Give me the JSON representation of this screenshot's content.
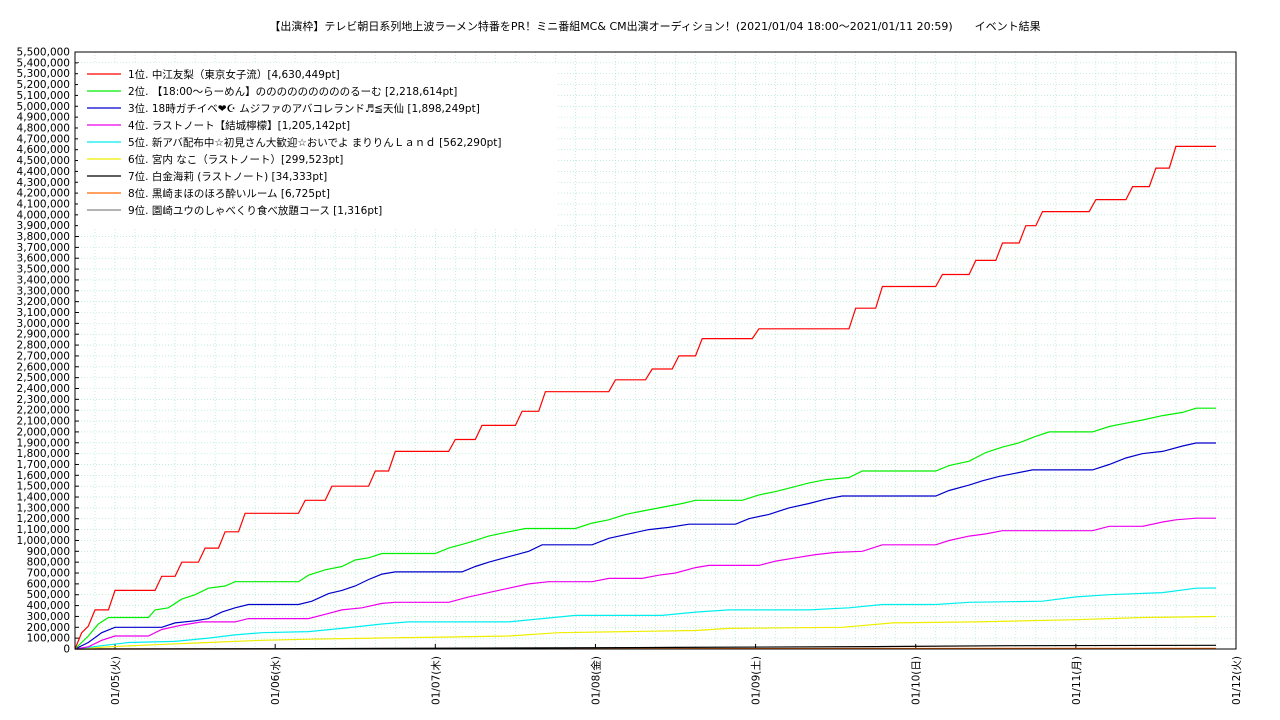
{
  "chart_data": {
    "type": "line",
    "title": "【出演枠】テレビ朝日系列地上波ラーメン特番をPR！ミニ番組MC& CM出演オーディション！(2021/01/04 18:00～2021/01/11 20:59)　　イベント結果",
    "xlabel": "",
    "ylabel": "",
    "x_ticks": [
      "01/05(火)",
      "01/06(水)",
      "01/07(木)",
      "01/08(金)",
      "01/09(土)",
      "01/10(日)",
      "01/11(月)",
      "01/12(火)"
    ],
    "x_range": [
      "2021/01/04 18:00",
      "2021/01/12 00:00"
    ],
    "ylim": [
      0,
      5500000
    ],
    "y_step": 100000,
    "grid": true,
    "legend_position": "top-left",
    "x_unit": "hours since 2021/01/04 18:00",
    "series": [
      {
        "name": "1位. 中江友梨（東京女子流）[4,630,449pt]",
        "color": "#ff0000",
        "points": [
          [
            0,
            0
          ],
          [
            2,
            150000
          ],
          [
            4,
            210000
          ],
          [
            6,
            360000
          ],
          [
            10,
            360000
          ],
          [
            12,
            540000
          ],
          [
            24,
            540000
          ],
          [
            26,
            670000
          ],
          [
            30,
            670000
          ],
          [
            32,
            800000
          ],
          [
            37,
            800000
          ],
          [
            39,
            930000
          ],
          [
            43,
            930000
          ],
          [
            45,
            1080000
          ],
          [
            49,
            1080000
          ],
          [
            51,
            1250000
          ],
          [
            67,
            1250000
          ],
          [
            69,
            1370000
          ],
          [
            75,
            1370000
          ],
          [
            77,
            1500000
          ],
          [
            88,
            1500000
          ],
          [
            90,
            1640000
          ],
          [
            94,
            1640000
          ],
          [
            96,
            1820000
          ],
          [
            112,
            1820000
          ],
          [
            114,
            1930000
          ],
          [
            120,
            1930000
          ],
          [
            122,
            2060000
          ],
          [
            132,
            2060000
          ],
          [
            134,
            2190000
          ],
          [
            139,
            2190000
          ],
          [
            141,
            2370000
          ],
          [
            160,
            2370000
          ],
          [
            162,
            2480000
          ],
          [
            171,
            2480000
          ],
          [
            173,
            2580000
          ],
          [
            179,
            2580000
          ],
          [
            181,
            2700000
          ],
          [
            186,
            2700000
          ],
          [
            188,
            2860000
          ],
          [
            203,
            2860000
          ],
          [
            205,
            2950000
          ],
          [
            232,
            2950000
          ],
          [
            234,
            3140000
          ],
          [
            240,
            3140000
          ],
          [
            242,
            3340000
          ],
          [
            258,
            3340000
          ],
          [
            260,
            3450000
          ],
          [
            268,
            3450000
          ],
          [
            270,
            3580000
          ],
          [
            276,
            3580000
          ],
          [
            278,
            3740000
          ],
          [
            283,
            3740000
          ],
          [
            285,
            3900000
          ],
          [
            288,
            3900000
          ],
          [
            290,
            4030000
          ],
          [
            304,
            4030000
          ],
          [
            306,
            4140000
          ],
          [
            315,
            4140000
          ],
          [
            317,
            4260000
          ],
          [
            322,
            4260000
          ],
          [
            324,
            4430000
          ],
          [
            328,
            4430000
          ],
          [
            330,
            4630449
          ],
          [
            342,
            4630449
          ]
        ]
      },
      {
        "name": "2位. 【18:00～らーめん】のののののののののるーむ [2,218,614pt]",
        "color": "#00ee00",
        "points": [
          [
            0,
            0
          ],
          [
            4,
            120000
          ],
          [
            7,
            230000
          ],
          [
            10,
            290000
          ],
          [
            22,
            290000
          ],
          [
            24,
            360000
          ],
          [
            28,
            380000
          ],
          [
            32,
            460000
          ],
          [
            36,
            500000
          ],
          [
            40,
            560000
          ],
          [
            45,
            580000
          ],
          [
            48,
            620000
          ],
          [
            67,
            620000
          ],
          [
            70,
            680000
          ],
          [
            75,
            730000
          ],
          [
            80,
            760000
          ],
          [
            84,
            820000
          ],
          [
            88,
            840000
          ],
          [
            92,
            880000
          ],
          [
            108,
            880000
          ],
          [
            112,
            930000
          ],
          [
            118,
            980000
          ],
          [
            124,
            1040000
          ],
          [
            130,
            1080000
          ],
          [
            135,
            1110000
          ],
          [
            150,
            1110000
          ],
          [
            155,
            1160000
          ],
          [
            160,
            1190000
          ],
          [
            165,
            1240000
          ],
          [
            170,
            1270000
          ],
          [
            175,
            1300000
          ],
          [
            182,
            1340000
          ],
          [
            186,
            1370000
          ],
          [
            200,
            1370000
          ],
          [
            205,
            1420000
          ],
          [
            210,
            1450000
          ],
          [
            215,
            1490000
          ],
          [
            220,
            1530000
          ],
          [
            225,
            1560000
          ],
          [
            232,
            1580000
          ],
          [
            236,
            1640000
          ],
          [
            258,
            1640000
          ],
          [
            262,
            1690000
          ],
          [
            268,
            1730000
          ],
          [
            273,
            1810000
          ],
          [
            278,
            1860000
          ],
          [
            283,
            1900000
          ],
          [
            288,
            1960000
          ],
          [
            292,
            2000000
          ],
          [
            305,
            2000000
          ],
          [
            310,
            2050000
          ],
          [
            315,
            2080000
          ],
          [
            320,
            2110000
          ],
          [
            326,
            2150000
          ],
          [
            332,
            2180000
          ],
          [
            336,
            2218614
          ],
          [
            342,
            2218614
          ]
        ]
      },
      {
        "name": "3位. 18時ガチイベ❤︎☪︎ ムジファのアバコレランド♬≦天仙 [1,898,249pt]",
        "color": "#0000cc",
        "points": [
          [
            0,
            0
          ],
          [
            4,
            60000
          ],
          [
            8,
            150000
          ],
          [
            12,
            200000
          ],
          [
            26,
            200000
          ],
          [
            30,
            240000
          ],
          [
            36,
            260000
          ],
          [
            40,
            280000
          ],
          [
            44,
            340000
          ],
          [
            48,
            380000
          ],
          [
            52,
            410000
          ],
          [
            67,
            410000
          ],
          [
            71,
            440000
          ],
          [
            76,
            510000
          ],
          [
            80,
            540000
          ],
          [
            84,
            580000
          ],
          [
            88,
            640000
          ],
          [
            92,
            690000
          ],
          [
            96,
            710000
          ],
          [
            116,
            710000
          ],
          [
            120,
            760000
          ],
          [
            124,
            800000
          ],
          [
            130,
            850000
          ],
          [
            136,
            900000
          ],
          [
            140,
            960000
          ],
          [
            155,
            960000
          ],
          [
            160,
            1020000
          ],
          [
            166,
            1060000
          ],
          [
            172,
            1100000
          ],
          [
            178,
            1120000
          ],
          [
            184,
            1150000
          ],
          [
            198,
            1150000
          ],
          [
            202,
            1200000
          ],
          [
            208,
            1240000
          ],
          [
            214,
            1300000
          ],
          [
            220,
            1340000
          ],
          [
            225,
            1380000
          ],
          [
            230,
            1410000
          ],
          [
            258,
            1410000
          ],
          [
            262,
            1460000
          ],
          [
            268,
            1510000
          ],
          [
            272,
            1550000
          ],
          [
            277,
            1590000
          ],
          [
            282,
            1620000
          ],
          [
            287,
            1650000
          ],
          [
            305,
            1650000
          ],
          [
            310,
            1700000
          ],
          [
            315,
            1760000
          ],
          [
            320,
            1800000
          ],
          [
            326,
            1820000
          ],
          [
            332,
            1870000
          ],
          [
            336,
            1898249
          ],
          [
            342,
            1898249
          ]
        ]
      },
      {
        "name": "4位. ラストノート【結城檸檬】[1,205,142pt]",
        "color": "#ee00ee",
        "points": [
          [
            0,
            0
          ],
          [
            4,
            20000
          ],
          [
            8,
            80000
          ],
          [
            12,
            120000
          ],
          [
            22,
            120000
          ],
          [
            26,
            180000
          ],
          [
            32,
            220000
          ],
          [
            38,
            250000
          ],
          [
            48,
            250000
          ],
          [
            52,
            280000
          ],
          [
            70,
            280000
          ],
          [
            75,
            320000
          ],
          [
            80,
            360000
          ],
          [
            86,
            380000
          ],
          [
            92,
            420000
          ],
          [
            96,
            430000
          ],
          [
            112,
            430000
          ],
          [
            118,
            480000
          ],
          [
            124,
            520000
          ],
          [
            130,
            560000
          ],
          [
            136,
            600000
          ],
          [
            142,
            620000
          ],
          [
            155,
            620000
          ],
          [
            160,
            650000
          ],
          [
            170,
            650000
          ],
          [
            175,
            680000
          ],
          [
            180,
            700000
          ],
          [
            186,
            750000
          ],
          [
            190,
            770000
          ],
          [
            205,
            770000
          ],
          [
            210,
            810000
          ],
          [
            216,
            840000
          ],
          [
            222,
            870000
          ],
          [
            228,
            890000
          ],
          [
            236,
            900000
          ],
          [
            242,
            960000
          ],
          [
            258,
            960000
          ],
          [
            262,
            1000000
          ],
          [
            268,
            1040000
          ],
          [
            273,
            1060000
          ],
          [
            278,
            1090000
          ],
          [
            290,
            1090000
          ],
          [
            305,
            1090000
          ],
          [
            310,
            1130000
          ],
          [
            320,
            1130000
          ],
          [
            326,
            1170000
          ],
          [
            330,
            1190000
          ],
          [
            336,
            1205142
          ],
          [
            342,
            1205142
          ]
        ]
      },
      {
        "name": "5位. 新アバ配布中☆初見さん大歓迎☆おいでよ まりりんＬａｎｄ [562,290pt]",
        "color": "#00eeee",
        "points": [
          [
            0,
            0
          ],
          [
            8,
            30000
          ],
          [
            16,
            60000
          ],
          [
            30,
            70000
          ],
          [
            40,
            100000
          ],
          [
            48,
            130000
          ],
          [
            56,
            150000
          ],
          [
            70,
            160000
          ],
          [
            80,
            190000
          ],
          [
            92,
            230000
          ],
          [
            100,
            250000
          ],
          [
            130,
            250000
          ],
          [
            140,
            280000
          ],
          [
            150,
            310000
          ],
          [
            176,
            310000
          ],
          [
            186,
            340000
          ],
          [
            196,
            360000
          ],
          [
            220,
            360000
          ],
          [
            232,
            380000
          ],
          [
            242,
            410000
          ],
          [
            258,
            410000
          ],
          [
            268,
            430000
          ],
          [
            290,
            440000
          ],
          [
            300,
            480000
          ],
          [
            310,
            500000
          ],
          [
            326,
            520000
          ],
          [
            336,
            560000
          ],
          [
            342,
            562290
          ]
        ]
      },
      {
        "name": "6位. 宮内 なこ（ラストノート）[299,523pt]",
        "color": "#eeee00",
        "points": [
          [
            0,
            0
          ],
          [
            10,
            20000
          ],
          [
            24,
            40000
          ],
          [
            40,
            60000
          ],
          [
            56,
            80000
          ],
          [
            70,
            90000
          ],
          [
            90,
            100000
          ],
          [
            110,
            110000
          ],
          [
            130,
            120000
          ],
          [
            145,
            150000
          ],
          [
            165,
            160000
          ],
          [
            186,
            170000
          ],
          [
            196,
            190000
          ],
          [
            230,
            200000
          ],
          [
            245,
            240000
          ],
          [
            270,
            250000
          ],
          [
            300,
            270000
          ],
          [
            320,
            290000
          ],
          [
            332,
            295000
          ],
          [
            342,
            299523
          ]
        ]
      },
      {
        "name": "7位. 白金海莉 (ラストノート) [34,333pt]",
        "color": "#000000",
        "points": [
          [
            0,
            0
          ],
          [
            60,
            3000
          ],
          [
            120,
            8000
          ],
          [
            180,
            15000
          ],
          [
            240,
            22000
          ],
          [
            280,
            30000
          ],
          [
            342,
            34333
          ]
        ]
      },
      {
        "name": "8位. 黒崎まほのほろ酔いルーム [6,725pt]",
        "color": "#ff6600",
        "points": [
          [
            0,
            0
          ],
          [
            100,
            1000
          ],
          [
            200,
            3500
          ],
          [
            280,
            5500
          ],
          [
            342,
            6725
          ]
        ]
      },
      {
        "name": "9位. 園崎ユウのしゃべくり食べ放題コース [1,316pt]",
        "color": "#888888",
        "points": [
          [
            0,
            0
          ],
          [
            150,
            500
          ],
          [
            250,
            900
          ],
          [
            342,
            1316
          ]
        ]
      }
    ]
  }
}
